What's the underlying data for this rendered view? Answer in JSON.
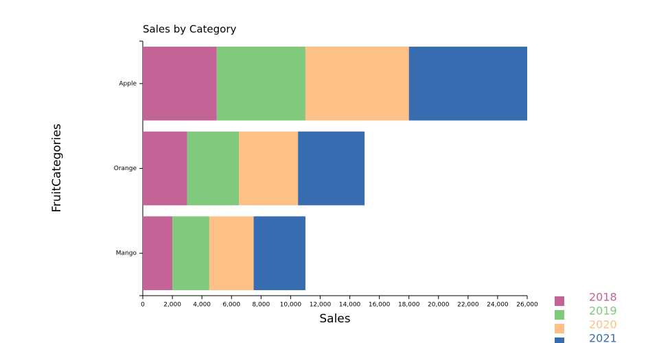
{
  "chart_data": {
    "type": "stacked-bar-horizontal",
    "title": "Sales by Category",
    "x_label": "Sales",
    "y_label": "FruitCategories",
    "categories": [
      "Apple",
      "Orange",
      "Mango"
    ],
    "series": [
      {
        "name": "2018",
        "color": "#c46496",
        "values": [
          5000,
          3000,
          2000
        ]
      },
      {
        "name": "2019",
        "color": "#80c97d",
        "values": [
          6000,
          3500,
          2500
        ]
      },
      {
        "name": "2020",
        "color": "#fdc086",
        "values": [
          7000,
          4000,
          3000
        ]
      },
      {
        "name": "2021",
        "color": "#386cb0",
        "values": [
          8000,
          4500,
          3500
        ]
      }
    ],
    "xlim": [
      0,
      26000
    ],
    "xticks": [
      0,
      {
        "value": 2000,
        "label": "2,000"
      },
      {
        "value": 4000,
        "label": "4,000"
      },
      {
        "value": 6000,
        "label": "6,000"
      },
      {
        "value": 8000,
        "label": "8,000"
      },
      {
        "value": 10000,
        "label": "10,000"
      },
      {
        "value": 12000,
        "label": "12,000"
      },
      {
        "value": 14000,
        "label": "14,000"
      },
      {
        "value": 16000,
        "label": "16,000"
      },
      {
        "value": 18000,
        "label": "18,000"
      },
      {
        "value": 20000,
        "label": "20,000"
      },
      {
        "value": 22000,
        "label": "22,000"
      },
      {
        "value": 24000,
        "label": "24,000"
      },
      {
        "value": 26000,
        "label": "26,000"
      }
    ],
    "grid": false,
    "legend": "bottom-right"
  }
}
